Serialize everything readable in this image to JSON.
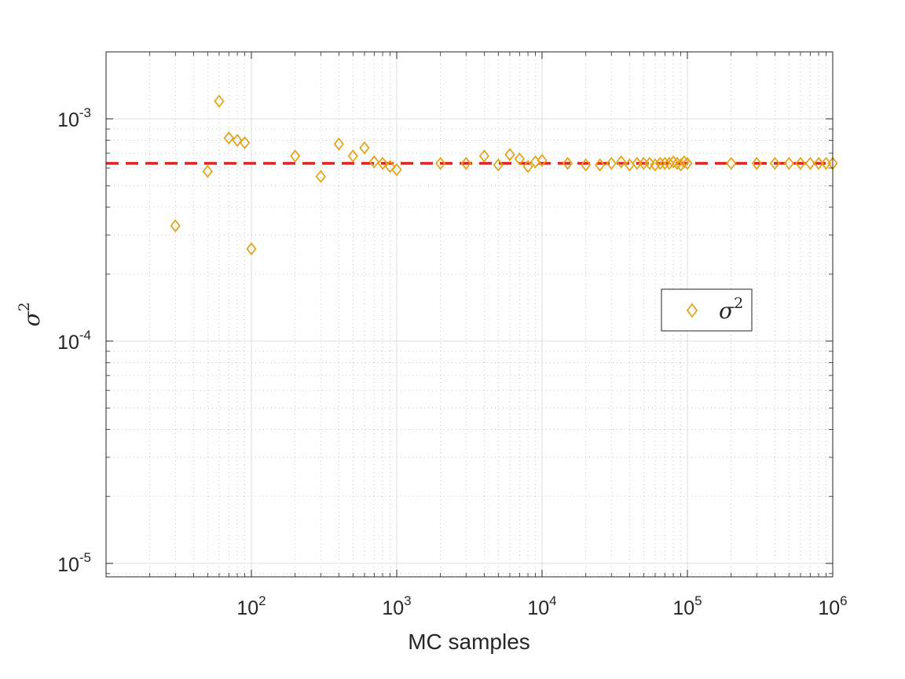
{
  "chart_data": {
    "type": "scatter",
    "xlabel": "MC samples",
    "ylabel_symbol": "σ",
    "ylabel_exponent": "2",
    "x_scale": "log",
    "y_scale": "log",
    "xlim": [
      10,
      1000000
    ],
    "ylim": [
      8.7e-06,
      0.002
    ],
    "grid": "on (major and minor)",
    "x_ticks": [
      {
        "base": "10",
        "exp": "2",
        "value": 100
      },
      {
        "base": "10",
        "exp": "3",
        "value": 1000
      },
      {
        "base": "10",
        "exp": "4",
        "value": 10000
      },
      {
        "base": "10",
        "exp": "5",
        "value": 100000
      },
      {
        "base": "10",
        "exp": "6",
        "value": 1000000
      }
    ],
    "y_ticks": [
      {
        "base": "10",
        "exp": "-5",
        "value": 1e-05
      },
      {
        "base": "10",
        "exp": "-4",
        "value": 0.0001
      },
      {
        "base": "10",
        "exp": "-3",
        "value": 0.001
      }
    ],
    "reference_line": {
      "y": 0.00063,
      "style": "dashed",
      "color": "#e32222"
    },
    "legend": {
      "symbol": "σ",
      "exponent": "2",
      "placement": "right-center"
    },
    "series": [
      {
        "name": "σ2",
        "marker": "diamond",
        "color": "#e3a51e",
        "points": [
          [
            30,
            0.00033
          ],
          [
            50,
            0.00058
          ],
          [
            60,
            0.0012
          ],
          [
            70,
            0.00082
          ],
          [
            80,
            0.0008
          ],
          [
            90,
            0.00078
          ],
          [
            100,
            0.00026
          ],
          [
            200,
            0.00068
          ],
          [
            300,
            0.00055
          ],
          [
            400,
            0.00077
          ],
          [
            500,
            0.00068
          ],
          [
            600,
            0.00074
          ],
          [
            700,
            0.00064
          ],
          [
            800,
            0.00063
          ],
          [
            900,
            0.00061
          ],
          [
            1000,
            0.00059
          ],
          [
            2000,
            0.00063
          ],
          [
            3000,
            0.00063
          ],
          [
            4000,
            0.00068
          ],
          [
            5000,
            0.00062
          ],
          [
            6000,
            0.00069
          ],
          [
            7000,
            0.00066
          ],
          [
            8000,
            0.00061
          ],
          [
            9000,
            0.00064
          ],
          [
            10000,
            0.00065
          ],
          [
            15000,
            0.00063
          ],
          [
            20000,
            0.00062
          ],
          [
            25000,
            0.00062
          ],
          [
            30000,
            0.00063
          ],
          [
            35000,
            0.00064
          ],
          [
            40000,
            0.00062
          ],
          [
            45000,
            0.00063
          ],
          [
            50000,
            0.00063
          ],
          [
            55000,
            0.00063
          ],
          [
            60000,
            0.00062
          ],
          [
            65000,
            0.00063
          ],
          [
            70000,
            0.00063
          ],
          [
            75000,
            0.00063
          ],
          [
            80000,
            0.00064
          ],
          [
            85000,
            0.00063
          ],
          [
            90000,
            0.00062
          ],
          [
            95000,
            0.00064
          ],
          [
            100000,
            0.00063
          ],
          [
            200000,
            0.00063
          ],
          [
            300000,
            0.00063
          ],
          [
            400000,
            0.00063
          ],
          [
            500000,
            0.00063
          ],
          [
            600000,
            0.00063
          ],
          [
            700000,
            0.00063
          ],
          [
            800000,
            0.00063
          ],
          [
            900000,
            0.00063
          ],
          [
            1000000,
            0.00063
          ]
        ]
      }
    ]
  }
}
